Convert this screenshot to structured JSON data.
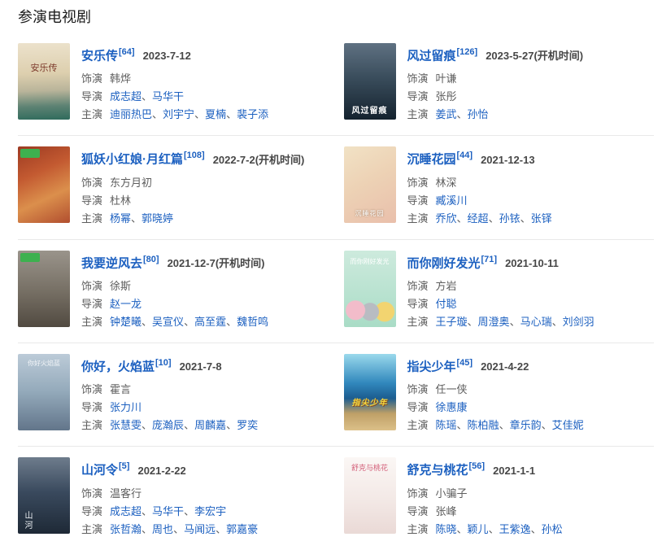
{
  "section_title": "参演电视剧",
  "labels": {
    "cast": "饰演",
    "director": "导演",
    "stars": "主演"
  },
  "sep": "、",
  "colors": {
    "link_blue": "#1c60c0",
    "body_text": "#5e5e5e",
    "date_text": "#474747",
    "divider": "#e9e9e9",
    "badge_green": "#3db14f",
    "background": "#ffffff"
  },
  "entries": [
    {
      "title": "安乐传",
      "ref": "[64]",
      "date": "2023-7-12",
      "cast": "韩烨",
      "directors": [
        {
          "n": "成志超",
          "link": true
        },
        {
          "n": "马华干",
          "link": true
        }
      ],
      "stars": [
        {
          "n": "迪丽热巴",
          "link": true
        },
        {
          "n": "刘宇宁",
          "link": true
        },
        {
          "n": "夏楠",
          "link": true
        },
        {
          "n": "裴子添",
          "link": true
        }
      ],
      "poster_text": "安乐传"
    },
    {
      "title": "风过留痕",
      "ref": "[126]",
      "date": "2023-5-27(开机时间)",
      "cast": "叶谦",
      "directors": [
        {
          "n": "张彤",
          "link": false
        }
      ],
      "stars": [
        {
          "n": "姜武",
          "link": true
        },
        {
          "n": "孙怡",
          "link": true
        }
      ],
      "poster_text": "风过留痕"
    },
    {
      "title": "狐妖小红娘·月红篇",
      "ref": "[108]",
      "date": "2022-7-2(开机时间)",
      "cast": "东方月初",
      "directors": [
        {
          "n": "杜林",
          "link": false
        }
      ],
      "stars": [
        {
          "n": "杨幂",
          "link": true
        },
        {
          "n": "郭晓婷",
          "link": true
        }
      ]
    },
    {
      "title": "沉睡花园",
      "ref": "[44]",
      "date": "2021-12-13",
      "cast": "林深",
      "directors": [
        {
          "n": "臧溪川",
          "link": true
        }
      ],
      "stars": [
        {
          "n": "乔欣",
          "link": true
        },
        {
          "n": "经超",
          "link": true
        },
        {
          "n": "孙铱",
          "link": true
        },
        {
          "n": "张铎",
          "link": true
        }
      ],
      "poster_text": "沉睡花园"
    },
    {
      "title": "我要逆风去",
      "ref": "[80]",
      "date": "2021-12-7(开机时间)",
      "cast": "徐斯",
      "directors": [
        {
          "n": "赵一龙",
          "link": true
        }
      ],
      "stars": [
        {
          "n": "钟楚曦",
          "link": true
        },
        {
          "n": "吴宣仪",
          "link": true
        },
        {
          "n": "高至霆",
          "link": true
        },
        {
          "n": "魏哲鸣",
          "link": true
        }
      ]
    },
    {
      "title": "而你刚好发光",
      "ref": "[71]",
      "date": "2021-10-11",
      "cast": "方岩",
      "directors": [
        {
          "n": "付聪",
          "link": true
        }
      ],
      "stars": [
        {
          "n": "王子璇",
          "link": true
        },
        {
          "n": "周澄奥",
          "link": true
        },
        {
          "n": "马心瑞",
          "link": true
        },
        {
          "n": "刘剑羽",
          "link": true
        }
      ],
      "poster_text": "而你刚好发光"
    },
    {
      "title": "你好，火焰蓝",
      "ref": "[10]",
      "date": "2021-7-8",
      "cast": "霍言",
      "directors": [
        {
          "n": "张力川",
          "link": true
        }
      ],
      "stars": [
        {
          "n": "张慧雯",
          "link": true
        },
        {
          "n": "庞瀚辰",
          "link": true
        },
        {
          "n": "周麟嘉",
          "link": true
        },
        {
          "n": "罗奕",
          "link": true
        }
      ],
      "poster_text": "你好火焰蓝"
    },
    {
      "title": "指尖少年",
      "ref": "[45]",
      "date": "2021-4-22",
      "cast": "任一侠",
      "directors": [
        {
          "n": "徐惠康",
          "link": true
        }
      ],
      "stars": [
        {
          "n": "陈瑶",
          "link": true
        },
        {
          "n": "陈柏融",
          "link": true
        },
        {
          "n": "章乐韵",
          "link": true
        },
        {
          "n": "艾佳妮",
          "link": true
        }
      ],
      "poster_text": "指尖少年"
    },
    {
      "title": "山河令",
      "ref": "[5]",
      "date": "2021-2-22",
      "cast": "温客行",
      "directors": [
        {
          "n": "成志超",
          "link": true
        },
        {
          "n": "马华干",
          "link": true
        },
        {
          "n": "李宏宇",
          "link": true
        }
      ],
      "stars": [
        {
          "n": "张哲瀚",
          "link": true
        },
        {
          "n": "周也",
          "link": true
        },
        {
          "n": "马闻远",
          "link": true
        },
        {
          "n": "郭嘉豪",
          "link": true
        }
      ],
      "poster_text": "山河"
    },
    {
      "title": "舒克与桃花",
      "ref": "[56]",
      "date": "2021-1-1",
      "cast": "小骗子",
      "directors": [
        {
          "n": "张峰",
          "link": false
        }
      ],
      "stars": [
        {
          "n": "陈晓",
          "link": true
        },
        {
          "n": "颖儿",
          "link": true
        },
        {
          "n": "王紫逸",
          "link": true
        },
        {
          "n": "孙松",
          "link": true
        }
      ],
      "poster_text": "舒克与桃花"
    }
  ]
}
